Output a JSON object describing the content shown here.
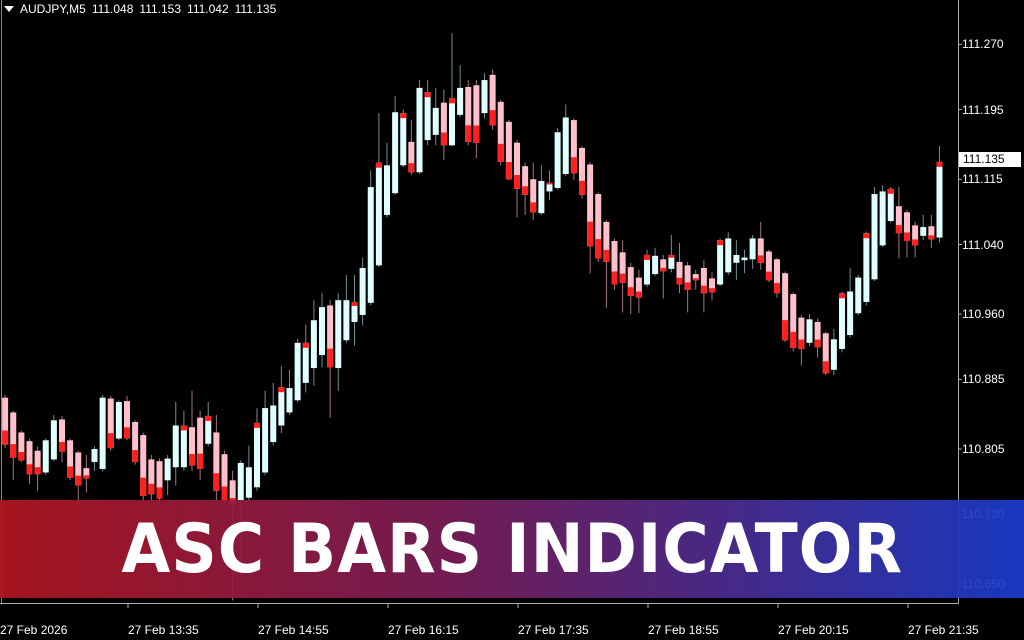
{
  "header": {
    "symbol": "AUDJPY,M5",
    "open": "111.048",
    "high": "111.153",
    "low": "111.042",
    "close": "111.135"
  },
  "banner": {
    "title": "ASC BARS INDICATOR"
  },
  "last_price": "111.135",
  "colors": {
    "background": "#000000",
    "bull_body": "#e0ffff",
    "bear_body": "#ffc0cb",
    "signal": "#ff2020",
    "banner_left": "#b21620",
    "banner_right": "#1a3ccd"
  },
  "chart_data": {
    "type": "candlestick",
    "title": "",
    "ylim": [
      110.628,
      111.321
    ],
    "y_ticks": [
      "111.270",
      "111.195",
      "111.115",
      "111.040",
      "110.960",
      "110.885",
      "110.805",
      "110.730",
      "110.650"
    ],
    "x_ticks": [
      "27 Feb 2026",
      "27 Feb 13:35",
      "27 Feb 14:55",
      "27 Feb 16:15",
      "27 Feb 17:35",
      "27 Feb 18:55",
      "27 Feb 20:15",
      "27 Feb 21:35"
    ],
    "grid": false,
    "ohlc": [
      [
        110.864,
        110.867,
        110.806,
        110.81
      ],
      [
        110.847,
        110.849,
        110.769,
        110.795
      ],
      [
        110.824,
        110.826,
        110.79,
        110.792
      ],
      [
        110.814,
        110.817,
        110.765,
        110.776
      ],
      [
        110.803,
        110.808,
        110.757,
        110.776
      ],
      [
        110.778,
        110.817,
        110.775,
        110.815
      ],
      [
        110.793,
        110.844,
        110.791,
        110.838
      ],
      [
        110.839,
        110.843,
        110.79,
        110.802
      ],
      [
        110.815,
        110.817,
        110.769,
        110.772
      ],
      [
        110.801,
        110.803,
        110.737,
        110.763
      ],
      [
        110.783,
        110.798,
        110.755,
        110.771
      ],
      [
        110.79,
        110.808,
        110.78,
        110.805
      ],
      [
        110.782,
        110.867,
        110.779,
        110.864
      ],
      [
        110.863,
        110.866,
        110.803,
        110.806
      ],
      [
        110.817,
        110.861,
        110.815,
        110.859
      ],
      [
        110.86,
        110.866,
        110.815,
        110.817
      ],
      [
        110.836,
        110.838,
        110.787,
        110.79
      ],
      [
        110.821,
        110.824,
        110.746,
        110.751
      ],
      [
        110.793,
        110.798,
        110.746,
        110.753
      ],
      [
        110.791,
        110.794,
        110.74,
        110.748
      ],
      [
        110.769,
        110.798,
        110.752,
        110.794
      ],
      [
        110.784,
        110.859,
        110.763,
        110.832
      ],
      [
        110.784,
        110.849,
        110.78,
        110.832
      ],
      [
        110.83,
        110.872,
        110.78,
        110.786
      ],
      [
        110.841,
        110.849,
        110.769,
        110.782
      ],
      [
        110.811,
        110.859,
        110.808,
        110.843
      ],
      [
        110.824,
        110.844,
        110.746,
        110.757
      ],
      [
        110.799,
        110.803,
        110.74,
        110.746
      ],
      [
        110.769,
        110.78,
        110.631,
        110.74
      ],
      [
        110.746,
        110.792,
        110.677,
        110.789
      ],
      [
        110.749,
        110.809,
        110.746,
        110.784
      ],
      [
        110.761,
        110.852,
        110.757,
        110.835
      ],
      [
        110.778,
        110.872,
        110.775,
        110.852
      ],
      [
        110.813,
        110.881,
        110.809,
        110.855
      ],
      [
        110.832,
        110.9,
        110.823,
        110.876
      ],
      [
        110.847,
        110.896,
        110.844,
        110.875
      ],
      [
        110.861,
        110.932,
        110.859,
        110.927
      ],
      [
        110.881,
        110.948,
        110.87,
        110.927
      ],
      [
        110.898,
        110.976,
        110.878,
        110.953
      ],
      [
        110.913,
        110.984,
        110.899,
        110.968
      ],
      [
        110.97,
        110.976,
        110.841,
        110.899
      ],
      [
        110.898,
        110.984,
        110.872,
        110.976
      ],
      [
        110.93,
        111.005,
        110.927,
        110.976
      ],
      [
        110.951,
        111.005,
        110.924,
        110.974
      ],
      [
        110.959,
        111.025,
        110.947,
        111.013
      ],
      [
        110.973,
        111.125,
        110.97,
        111.106
      ],
      [
        111.016,
        111.191,
        111.014,
        111.134
      ],
      [
        111.074,
        111.157,
        111.071,
        111.131
      ],
      [
        111.099,
        111.211,
        111.097,
        111.192
      ],
      [
        111.131,
        111.195,
        111.129,
        111.191
      ],
      [
        111.158,
        111.183,
        111.12,
        111.123
      ],
      [
        111.123,
        111.229,
        111.121,
        111.22
      ],
      [
        111.16,
        111.229,
        111.154,
        111.215
      ],
      [
        111.166,
        111.22,
        111.154,
        111.197
      ],
      [
        111.203,
        111.218,
        111.137,
        111.154
      ],
      [
        111.154,
        111.283,
        111.153,
        111.208
      ],
      [
        111.189,
        111.246,
        111.186,
        111.22
      ],
      [
        111.221,
        111.229,
        111.154,
        111.158
      ],
      [
        111.223,
        111.229,
        111.139,
        111.157
      ],
      [
        111.191,
        111.237,
        111.185,
        111.229
      ],
      [
        111.235,
        111.241,
        111.172,
        111.177
      ],
      [
        111.204,
        111.206,
        111.131,
        111.135
      ],
      [
        111.181,
        111.183,
        111.114,
        111.115
      ],
      [
        111.157,
        111.16,
        111.071,
        111.104
      ],
      [
        111.13,
        111.134,
        111.074,
        111.097
      ],
      [
        111.115,
        111.134,
        111.068,
        111.077
      ],
      [
        111.076,
        111.131,
        111.074,
        111.113
      ],
      [
        111.101,
        111.125,
        111.091,
        111.111
      ],
      [
        111.105,
        111.174,
        111.103,
        111.169
      ],
      [
        111.121,
        111.201,
        111.119,
        111.186
      ],
      [
        111.183,
        111.185,
        111.114,
        111.122
      ],
      [
        111.151,
        111.153,
        111.093,
        111.097
      ],
      [
        111.132,
        111.135,
        111.007,
        111.038
      ],
      [
        111.098,
        111.1,
        111.02,
        111.024
      ],
      [
        111.066,
        111.068,
        110.967,
        111.02
      ],
      [
        111.044,
        111.047,
        110.988,
        110.994
      ],
      [
        111.031,
        111.045,
        110.962,
        110.996
      ],
      [
        111.014,
        111.019,
        110.96,
        110.981
      ],
      [
        111.002,
        111.011,
        110.961,
        110.979
      ],
      [
        110.994,
        111.034,
        110.991,
        111.028
      ],
      [
        111.006,
        111.036,
        111.004,
        111.027
      ],
      [
        111.023,
        111.028,
        110.978,
        111.009
      ],
      [
        111.012,
        111.051,
        111.008,
        111.028
      ],
      [
        111.02,
        111.042,
        110.984,
        110.994
      ],
      [
        111.016,
        111.02,
        110.962,
        110.988
      ],
      [
        111.006,
        111.011,
        110.988,
        110.999
      ],
      [
        111.013,
        111.022,
        110.962,
        110.984
      ],
      [
        111.001,
        111.008,
        110.976,
        110.985
      ],
      [
        110.994,
        111.047,
        110.992,
        111.045
      ],
      [
        111.008,
        111.054,
        111.005,
        111.047
      ],
      [
        111.019,
        111.045,
        110.999,
        111.028
      ],
      [
        111.022,
        111.034,
        111.007,
        111.025
      ],
      [
        111.023,
        111.051,
        111.012,
        111.047
      ],
      [
        111.047,
        111.066,
        111.011,
        111.019
      ],
      [
        111.032,
        111.034,
        110.997,
        110.999
      ],
      [
        111.023,
        111.025,
        110.979,
        110.984
      ],
      [
        111.007,
        111.009,
        110.928,
        110.93
      ],
      [
        110.983,
        110.985,
        110.917,
        110.921
      ],
      [
        110.956,
        110.959,
        110.901,
        110.92
      ],
      [
        110.927,
        110.96,
        110.923,
        110.954
      ],
      [
        110.951,
        110.955,
        110.91,
        110.922
      ],
      [
        110.938,
        110.94,
        110.89,
        110.892
      ],
      [
        110.896,
        110.943,
        110.89,
        110.931
      ],
      [
        110.92,
        110.986,
        110.916,
        110.984
      ],
      [
        110.936,
        111.013,
        110.933,
        110.986
      ],
      [
        110.961,
        111.005,
        110.959,
        111.002
      ],
      [
        110.974,
        111.055,
        110.97,
        111.053
      ],
      [
        111.0,
        111.106,
        110.998,
        111.098
      ],
      [
        111.039,
        111.108,
        111.037,
        111.101
      ],
      [
        111.067,
        111.106,
        111.065,
        111.104
      ],
      [
        111.084,
        111.106,
        111.024,
        111.053
      ],
      [
        111.077,
        111.08,
        111.025,
        111.044
      ],
      [
        111.062,
        111.066,
        111.025,
        111.039
      ],
      [
        111.05,
        111.074,
        111.045,
        111.06
      ],
      [
        111.061,
        111.074,
        111.036,
        111.046
      ],
      [
        111.048,
        111.153,
        111.042,
        111.135
      ]
    ]
  }
}
